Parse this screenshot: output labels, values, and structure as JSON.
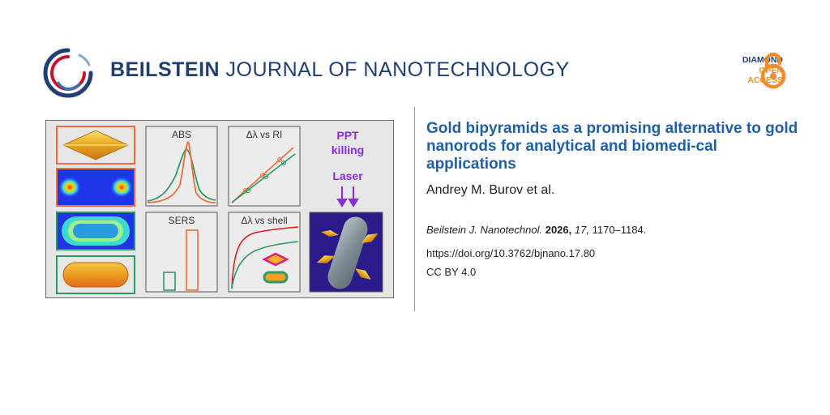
{
  "header": {
    "journal_bold": "BEILSTEIN",
    "journal_rest": "JOURNAL OF NANOTECHNOLOGY",
    "access_badge": {
      "line1": "DIAMOND",
      "line2": "OPEN",
      "line3": "ACCESS"
    },
    "colors": {
      "brand_navy": "#1f3f73",
      "brand_red": "#c8102e",
      "access_orange": "#f28c28"
    }
  },
  "graphic": {
    "abs_label": "ABS",
    "ri_label": "Δλ vs RI",
    "sers_label": "SERS",
    "shell_label": "Δλ vs shell",
    "ppt_line1": "PPT",
    "ppt_line2": "killing",
    "laser_label": "Laser",
    "colors": {
      "orange_series": "#f26b3a",
      "green_series": "#2e9a5e",
      "ppt_purple": "#8a2be2"
    }
  },
  "article": {
    "title": "Gold bipyramids as a promising alternative to gold nanorods for analytical and biomedi-cal applications",
    "authors": "Andrey M. Burov et al.",
    "citation_journal": "Beilstein J. Nanotechnol.",
    "citation_year": "2026,",
    "citation_volume": "17,",
    "citation_pages": "1170–1184.",
    "doi": "https://doi.org/10.3762/bjnano.17.80",
    "license": "CC BY 4.0"
  }
}
